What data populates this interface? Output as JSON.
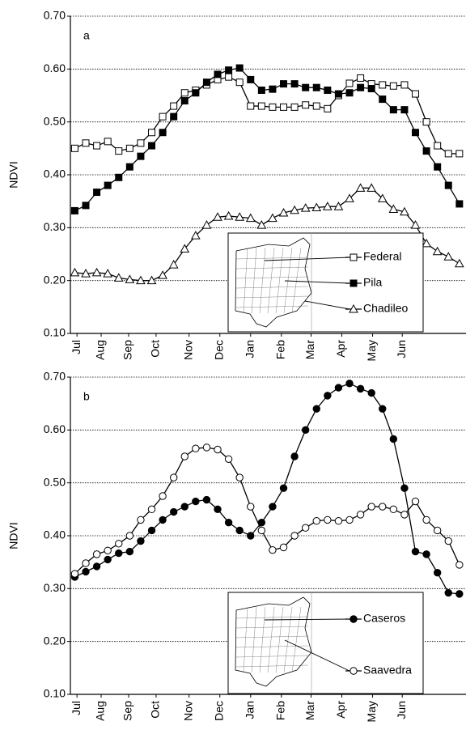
{
  "chart_data": [
    {
      "type": "line",
      "panel_label": "a",
      "ylabel": "NDVI",
      "x": [
        1,
        2,
        3,
        4,
        5,
        6,
        7,
        8,
        9,
        10,
        11,
        12,
        13,
        14,
        15,
        16,
        17,
        18,
        19,
        20,
        21,
        22,
        23,
        24,
        25,
        26,
        27,
        28,
        29,
        30,
        31,
        32,
        33,
        34,
        35,
        36
      ],
      "xlim": [
        0.6,
        36.6
      ],
      "xticks": [
        {
          "value": 1.2,
          "label": "Jul"
        },
        {
          "value": 3.4,
          "label": "Aug"
        },
        {
          "value": 5.9,
          "label": "Sep"
        },
        {
          "value": 8.4,
          "label": "Oct"
        },
        {
          "value": 11.4,
          "label": "Nov"
        },
        {
          "value": 14.2,
          "label": "Dec"
        },
        {
          "value": 17,
          "label": "Jan"
        },
        {
          "value": 19.8,
          "label": "Feb"
        },
        {
          "value": 22.5,
          "label": "Mar"
        },
        {
          "value": 25.3,
          "label": "Apr"
        },
        {
          "value": 28.1,
          "label": "May"
        },
        {
          "value": 30.8,
          "label": "Jun"
        }
      ],
      "ylim": [
        0.1,
        0.7
      ],
      "yticks": [
        {
          "value": 0.1,
          "label": "0.10"
        },
        {
          "value": 0.2,
          "label": "0.20"
        },
        {
          "value": 0.3,
          "label": "0.30"
        },
        {
          "value": 0.4,
          "label": "0.40"
        },
        {
          "value": 0.5,
          "label": "0.50"
        },
        {
          "value": 0.6,
          "label": "0.60"
        },
        {
          "value": 0.7,
          "label": "0.70"
        }
      ],
      "grid": true,
      "series": [
        {
          "name": "Federal",
          "color": "#000000",
          "marker": "square-open",
          "values": [
            0.45,
            0.46,
            0.455,
            0.463,
            0.445,
            0.45,
            0.46,
            0.48,
            0.51,
            0.53,
            0.555,
            0.56,
            0.57,
            0.58,
            0.585,
            0.575,
            0.53,
            0.53,
            0.528,
            0.528,
            0.528,
            0.532,
            0.53,
            0.525,
            0.55,
            0.573,
            0.583,
            0.572,
            0.57,
            0.568,
            0.57,
            0.553,
            0.5,
            0.455,
            0.44,
            0.44
          ]
        },
        {
          "name": "Pila",
          "color": "#000000",
          "marker": "square-filled",
          "values": [
            0.332,
            0.342,
            0.367,
            0.38,
            0.395,
            0.415,
            0.435,
            0.455,
            0.48,
            0.51,
            0.54,
            0.555,
            0.575,
            0.59,
            0.598,
            0.602,
            0.58,
            0.56,
            0.562,
            0.572,
            0.572,
            0.565,
            0.565,
            0.56,
            0.553,
            0.555,
            0.565,
            0.563,
            0.543,
            0.523,
            0.523,
            0.48,
            0.445,
            0.415,
            0.38,
            0.345
          ]
        },
        {
          "name": "Chadileo",
          "color": "#000000",
          "marker": "triangle-open",
          "values": [
            0.215,
            0.213,
            0.215,
            0.213,
            0.205,
            0.202,
            0.2,
            0.2,
            0.21,
            0.23,
            0.26,
            0.285,
            0.305,
            0.32,
            0.322,
            0.32,
            0.318,
            0.305,
            0.318,
            0.328,
            0.333,
            0.337,
            0.338,
            0.34,
            0.34,
            0.355,
            0.375,
            0.375,
            0.355,
            0.335,
            0.33,
            0.305,
            0.27,
            0.255,
            0.245,
            0.232
          ]
        }
      ]
    },
    {
      "type": "line",
      "panel_label": "b",
      "ylabel": "NDVI",
      "x": [
        1,
        2,
        3,
        4,
        5,
        6,
        7,
        8,
        9,
        10,
        11,
        12,
        13,
        14,
        15,
        16,
        17,
        18,
        19,
        20,
        21,
        22,
        23,
        24,
        25,
        26,
        27,
        28,
        29,
        30,
        31,
        32,
        33,
        34,
        35,
        36
      ],
      "xlim": [
        0.6,
        36.6
      ],
      "xticks": [
        {
          "value": 1.2,
          "label": "Jul"
        },
        {
          "value": 3.4,
          "label": "Aug"
        },
        {
          "value": 5.9,
          "label": "Sep"
        },
        {
          "value": 8.4,
          "label": "Oct"
        },
        {
          "value": 11.4,
          "label": "Nov"
        },
        {
          "value": 14.2,
          "label": "Dec"
        },
        {
          "value": 17,
          "label": "Jan"
        },
        {
          "value": 19.8,
          "label": "Feb"
        },
        {
          "value": 22.5,
          "label": "Mar"
        },
        {
          "value": 25.3,
          "label": "Apr"
        },
        {
          "value": 28.1,
          "label": "May"
        },
        {
          "value": 30.8,
          "label": "Jun"
        }
      ],
      "ylim": [
        0.1,
        0.7
      ],
      "yticks": [
        {
          "value": 0.1,
          "label": "0.10"
        },
        {
          "value": 0.2,
          "label": "0.20"
        },
        {
          "value": 0.3,
          "label": "0.30"
        },
        {
          "value": 0.4,
          "label": "0.40"
        },
        {
          "value": 0.5,
          "label": "0.50"
        },
        {
          "value": 0.6,
          "label": "0.60"
        },
        {
          "value": 0.7,
          "label": "0.70"
        }
      ],
      "grid": true,
      "series": [
        {
          "name": "Caseros",
          "color": "#000000",
          "marker": "circle-filled",
          "values": [
            0.322,
            0.332,
            0.342,
            0.355,
            0.367,
            0.37,
            0.39,
            0.41,
            0.43,
            0.445,
            0.455,
            0.465,
            0.468,
            0.45,
            0.425,
            0.41,
            0.4,
            0.425,
            0.455,
            0.49,
            0.55,
            0.6,
            0.64,
            0.665,
            0.68,
            0.688,
            0.678,
            0.67,
            0.64,
            0.583,
            0.49,
            0.37,
            0.365,
            0.33,
            0.292,
            0.29
          ]
        },
        {
          "name": "Saavedra",
          "color": "#000000",
          "marker": "circle-open",
          "values": [
            0.328,
            0.348,
            0.365,
            0.372,
            0.385,
            0.4,
            0.43,
            0.45,
            0.475,
            0.51,
            0.55,
            0.565,
            0.567,
            0.563,
            0.545,
            0.51,
            0.455,
            0.41,
            0.373,
            0.378,
            0.4,
            0.415,
            0.428,
            0.43,
            0.428,
            0.43,
            0.44,
            0.455,
            0.455,
            0.45,
            0.44,
            0.465,
            0.43,
            0.41,
            0.39,
            0.345
          ]
        }
      ]
    }
  ]
}
